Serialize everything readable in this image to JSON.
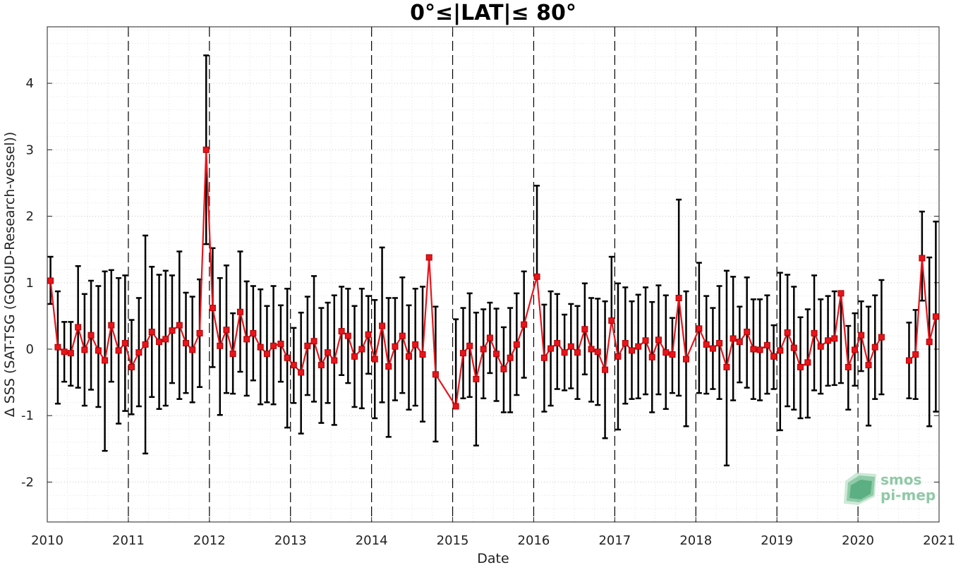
{
  "chart_data": {
    "type": "line",
    "title": "0°≤|LAT|≤ 80°",
    "xlabel": "Date",
    "ylabel": "Δ SSS (SAT-TSG (GOSUD-Research-vessel))",
    "xlim": [
      2010,
      2021
    ],
    "ylim": [
      -2.6,
      4.85
    ],
    "x_ticks": [
      "2010",
      "2011",
      "2012",
      "2013",
      "2014",
      "2015",
      "2016",
      "2017",
      "2018",
      "2019",
      "2020",
      "2021"
    ],
    "y_ticks": [
      "-2",
      "-1",
      "0",
      "1",
      "2",
      "3",
      "4"
    ],
    "y_tick_values": [
      -2,
      -1,
      0,
      1,
      2,
      3,
      4
    ],
    "grid": "dotted major and minor",
    "year_boundaries": "dashed vertical lines",
    "line_color": "#e8141c",
    "errorbar_color": "#000000",
    "marker": "square",
    "series": [
      {
        "segments": [
          {
            "x": [
              2010.04,
              2010.13,
              2010.21,
              2010.29,
              2010.38,
              2010.46,
              2010.54,
              2010.63,
              2010.71,
              2010.79,
              2010.88,
              2010.96,
              2011.04,
              2011.13,
              2011.21,
              2011.29,
              2011.38,
              2011.46,
              2011.54,
              2011.63,
              2011.71,
              2011.79,
              2011.88,
              2011.96,
              2012.04,
              2012.13,
              2012.21,
              2012.29,
              2012.38,
              2012.46,
              2012.54,
              2012.63,
              2012.71,
              2012.79,
              2012.88,
              2012.96,
              2013.04,
              2013.13,
              2013.21,
              2013.29,
              2013.38,
              2013.46,
              2013.54,
              2013.63,
              2013.71,
              2013.79,
              2013.88,
              2013.96,
              2014.04,
              2014.13,
              2014.21,
              2014.29,
              2014.38,
              2014.46,
              2014.54,
              2014.63,
              2014.71,
              2014.79,
              2015.04,
              2015.13,
              2015.21,
              2015.29,
              2015.38,
              2015.46,
              2015.54,
              2015.63,
              2015.71,
              2015.79,
              2015.88,
              2016.04,
              2016.13,
              2016.21,
              2016.29,
              2016.38,
              2016.46,
              2016.54,
              2016.63,
              2016.71,
              2016.79,
              2016.88,
              2016.96,
              2017.04,
              2017.13,
              2017.21,
              2017.29,
              2017.38,
              2017.46,
              2017.54,
              2017.63,
              2017.71,
              2017.79,
              2017.88,
              2018.04,
              2018.13,
              2018.21,
              2018.29,
              2018.38,
              2018.46,
              2018.54,
              2018.63,
              2018.71,
              2018.79,
              2018.88,
              2018.96,
              2019.04,
              2019.13,
              2019.21,
              2019.29,
              2019.38,
              2019.46,
              2019.54,
              2019.63,
              2019.71,
              2019.79,
              2019.88,
              2019.96,
              2020.04,
              2020.13,
              2020.21,
              2020.29
            ],
            "y": [
              1.03,
              0.03,
              -0.04,
              -0.06,
              0.33,
              -0.01,
              0.21,
              -0.02,
              -0.17,
              0.36,
              -0.02,
              0.09,
              -0.27,
              -0.05,
              0.07,
              0.26,
              0.11,
              0.15,
              0.28,
              0.36,
              0.09,
              -0.01,
              0.24,
              3.0,
              0.62,
              0.05,
              0.29,
              -0.07,
              0.56,
              0.15,
              0.24,
              0.03,
              -0.07,
              0.05,
              0.08,
              -0.13,
              -0.24,
              -0.35,
              0.05,
              0.12,
              -0.24,
              -0.05,
              -0.17,
              0.27,
              0.2,
              -0.11,
              0.0,
              0.22,
              -0.15,
              0.35,
              -0.26,
              0.04,
              0.2,
              -0.11,
              0.07,
              -0.08,
              1.38,
              -0.38,
              -0.86,
              -0.06,
              0.05,
              -0.45,
              0.0,
              0.17,
              -0.07,
              -0.3,
              -0.13,
              0.07,
              0.37,
              1.09,
              -0.13,
              0.01,
              0.09,
              -0.05,
              0.04,
              -0.05,
              0.3,
              0.0,
              -0.04,
              -0.31,
              0.43,
              -0.11,
              0.09,
              -0.02,
              0.04,
              0.13,
              -0.12,
              0.14,
              -0.05,
              -0.08,
              0.77,
              -0.15,
              0.31,
              0.07,
              0.01,
              0.09,
              -0.27,
              0.16,
              0.11,
              0.26,
              0.0,
              -0.01,
              0.06,
              -0.11,
              -0.02,
              0.25,
              0.02,
              -0.27,
              -0.2,
              0.24,
              0.04,
              0.13,
              0.16,
              0.84,
              -0.27,
              -0.01,
              0.21,
              -0.24,
              0.03,
              0.18
            ],
            "y_low": [
              0.68,
              -0.82,
              -0.49,
              -0.55,
              -0.58,
              -0.85,
              -0.61,
              -0.87,
              -1.53,
              -0.49,
              -1.12,
              -0.93,
              -0.98,
              -0.86,
              -1.57,
              -0.72,
              -0.9,
              -0.85,
              -0.51,
              -0.75,
              -0.66,
              -0.8,
              -0.57,
              1.58,
              -0.27,
              -0.99,
              -0.66,
              -0.67,
              -0.34,
              -0.7,
              -0.47,
              -0.83,
              -0.8,
              -0.83,
              -0.49,
              -1.18,
              -0.81,
              -1.27,
              -0.69,
              -0.79,
              -1.11,
              -0.81,
              -1.14,
              -0.39,
              -0.51,
              -0.87,
              -0.89,
              -0.37,
              -1.04,
              -0.8,
              -1.32,
              -0.77,
              -0.66,
              -0.91,
              -0.85,
              -1.09,
              1.38,
              -1.39,
              -0.86,
              -0.74,
              -0.72,
              -1.45,
              -0.74,
              -0.36,
              -0.78,
              -0.95,
              -0.95,
              -0.69,
              -0.43,
              1.09,
              -0.94,
              -0.85,
              -0.6,
              -0.62,
              -0.59,
              -0.75,
              -0.38,
              -0.79,
              -0.84,
              -1.34,
              0.43,
              -1.21,
              -0.82,
              -0.75,
              -0.74,
              -0.68,
              -0.95,
              -0.68,
              -0.9,
              -0.66,
              -0.7,
              -1.16,
              -0.66,
              -0.67,
              -0.6,
              -0.75,
              -1.75,
              -0.77,
              -0.5,
              -0.58,
              -0.75,
              -0.77,
              -0.67,
              -0.6,
              -1.22,
              -0.86,
              -0.91,
              -1.04,
              -1.03,
              -0.62,
              -0.67,
              -0.55,
              -0.54,
              -0.51,
              -0.91,
              -0.55,
              -0.33,
              -1.15,
              -0.75,
              -0.68
            ],
            "y_high": [
              1.39,
              0.87,
              0.41,
              0.41,
              1.25,
              0.83,
              1.03,
              0.95,
              1.17,
              1.19,
              1.07,
              1.11,
              0.44,
              0.77,
              1.71,
              1.24,
              1.12,
              1.18,
              1.11,
              1.47,
              0.85,
              0.79,
              1.05,
              4.42,
              1.52,
              1.07,
              1.26,
              0.54,
              1.47,
              1.02,
              0.95,
              0.9,
              0.65,
              0.95,
              0.66,
              0.91,
              0.32,
              0.55,
              0.79,
              1.1,
              0.62,
              0.7,
              0.81,
              0.94,
              0.91,
              0.65,
              0.91,
              0.8,
              0.74,
              1.53,
              0.77,
              0.77,
              1.08,
              0.66,
              0.91,
              0.94,
              1.38,
              0.64,
              0.45,
              0.62,
              0.84,
              0.55,
              0.6,
              0.7,
              0.61,
              0.33,
              0.62,
              0.84,
              1.17,
              2.46,
              0.67,
              0.87,
              0.83,
              0.52,
              0.68,
              0.65,
              0.99,
              0.77,
              0.76,
              0.72,
              1.39,
              0.99,
              0.93,
              0.72,
              0.82,
              0.93,
              0.71,
              0.96,
              0.81,
              0.47,
              2.25,
              0.87,
              1.3,
              0.8,
              0.62,
              0.95,
              1.18,
              1.09,
              0.64,
              1.08,
              0.75,
              0.75,
              0.81,
              0.36,
              1.15,
              1.12,
              0.94,
              0.48,
              0.6,
              1.11,
              0.75,
              0.8,
              0.87,
              0.87,
              0.35,
              0.54,
              0.72,
              0.64,
              0.81,
              1.04
            ]
          },
          {
            "x": [
              2020.63,
              2020.71,
              2020.79,
              2020.88,
              2020.96
            ],
            "y": [
              -0.17,
              -0.08,
              1.37,
              0.11,
              0.49
            ],
            "y_low": [
              -0.74,
              -0.75,
              0.73,
              -1.16,
              -0.94
            ],
            "y_high": [
              0.4,
              0.59,
              2.07,
              1.38,
              1.92
            ]
          }
        ]
      }
    ]
  },
  "logo": {
    "line1": "smos",
    "line2": "pi-mep",
    "color": "#8fc9a6"
  }
}
